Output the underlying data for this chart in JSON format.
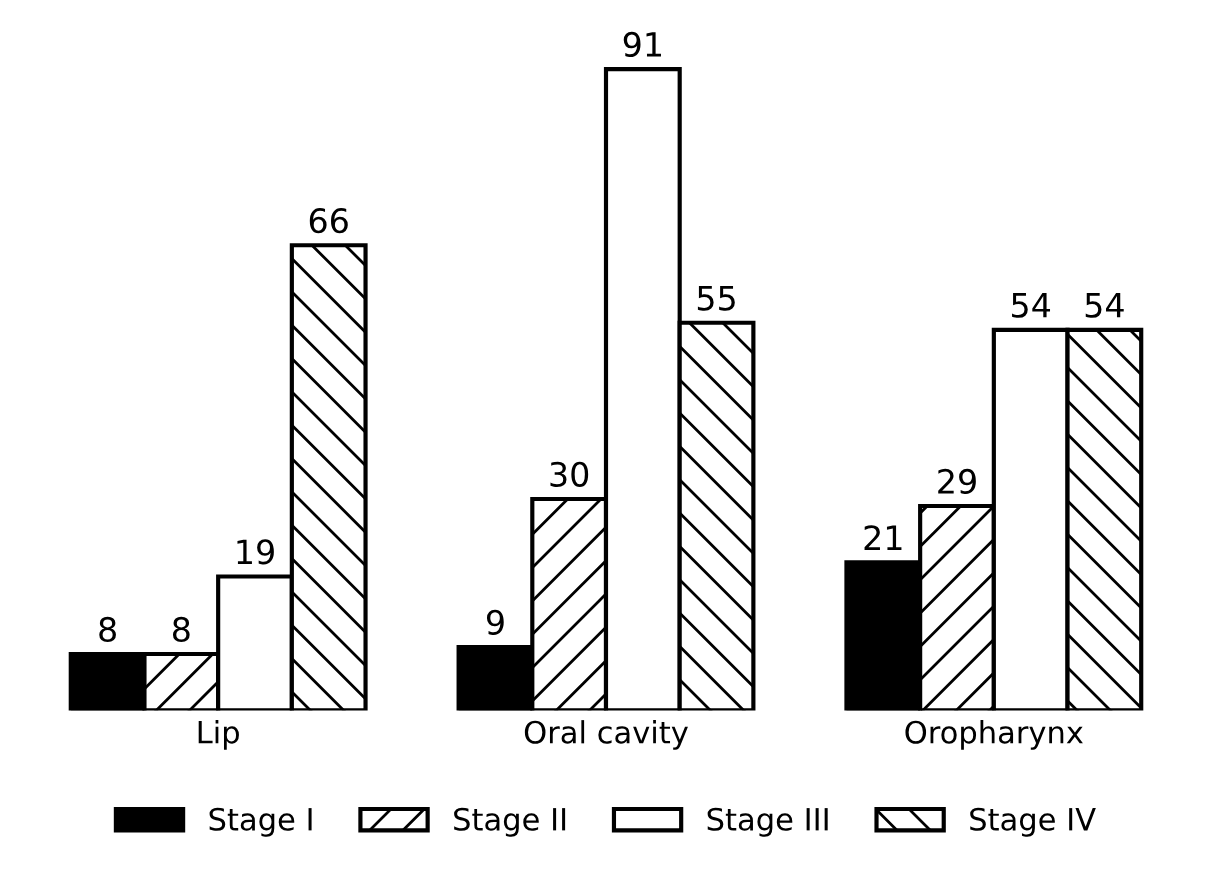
{
  "chart_data": {
    "type": "bar",
    "categories": [
      "Lip",
      "Oral cavity",
      "Oropharynx"
    ],
    "series": [
      {
        "name": "Stage I",
        "color": "#000000",
        "values": [
          8,
          9,
          21
        ]
      },
      {
        "name": "Stage II",
        "color": "#000000",
        "values": [
          8,
          30,
          29
        ]
      },
      {
        "name": "Stage III",
        "color": "#ffffff",
        "values": [
          19,
          91,
          54
        ]
      },
      {
        "name": "Stage IV",
        "color": "#000000",
        "values": [
          66,
          55,
          54
        ]
      }
    ],
    "data_labels": true,
    "legend": "bottom",
    "grid": false
  }
}
